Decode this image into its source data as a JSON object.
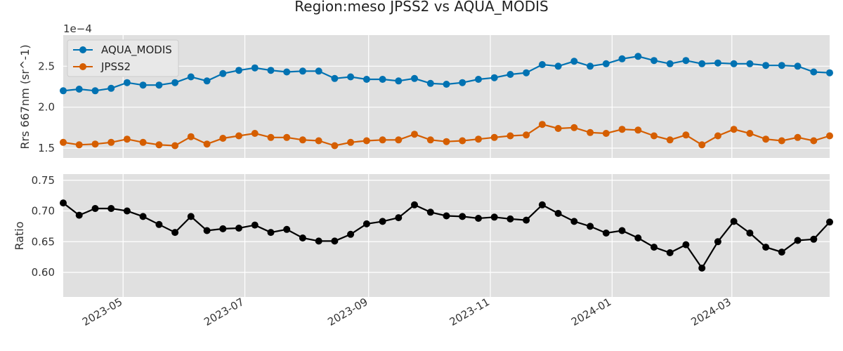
{
  "chart_data": {
    "type": "line",
    "title": "Region:meso JPSS2 vs AQUA_MODIS",
    "colors": {
      "panel_bg": "#e0e0e0",
      "grid": "#ffffff",
      "aqua": "#0072b2",
      "jpss2": "#d55e00",
      "ratio": "#000000"
    },
    "x_dates": [
      "2023-04-01",
      "2023-04-09",
      "2023-04-17",
      "2023-04-25",
      "2023-05-03",
      "2023-05-11",
      "2023-05-19",
      "2023-05-27",
      "2023-06-04",
      "2023-06-12",
      "2023-06-20",
      "2023-06-28",
      "2023-07-06",
      "2023-07-14",
      "2023-07-22",
      "2023-07-30",
      "2023-08-07",
      "2023-08-15",
      "2023-08-23",
      "2023-08-31",
      "2023-09-08",
      "2023-09-16",
      "2023-09-24",
      "2023-10-02",
      "2023-10-10",
      "2023-10-18",
      "2023-10-26",
      "2023-11-03",
      "2023-11-11",
      "2023-11-19",
      "2023-11-27",
      "2023-12-05",
      "2023-12-13",
      "2023-12-21",
      "2023-12-29",
      "2024-01-06",
      "2024-01-14",
      "2024-01-22",
      "2024-01-30",
      "2024-02-07",
      "2024-02-15",
      "2024-02-23",
      "2024-03-02",
      "2024-03-10",
      "2024-03-18",
      "2024-03-26",
      "2024-04-03",
      "2024-04-11",
      "2024-04-19"
    ],
    "xlim": [
      "2023-04-01",
      "2024-04-19"
    ],
    "xticks": [
      "2023-05",
      "2023-07",
      "2023-09",
      "2023-11",
      "2024-01",
      "2024-03"
    ],
    "top": {
      "ylabel": "Rrs 667nm (sr^-1)",
      "offset_text": "1e−4",
      "ylim": [
        1.38,
        2.88
      ],
      "yticks": [
        "1.5",
        "2.0",
        "2.5"
      ],
      "legend_position": "upper-left",
      "series": [
        {
          "name": "AQUA_MODIS",
          "color": "#0072b2",
          "values": [
            2.2,
            2.22,
            2.2,
            2.23,
            2.3,
            2.27,
            2.27,
            2.3,
            2.37,
            2.32,
            2.41,
            2.45,
            2.48,
            2.45,
            2.43,
            2.44,
            2.44,
            2.35,
            2.37,
            2.34,
            2.34,
            2.32,
            2.35,
            2.29,
            2.28,
            2.3,
            2.34,
            2.36,
            2.4,
            2.42,
            2.52,
            2.5,
            2.56,
            2.5,
            2.53,
            2.59,
            2.62,
            2.57,
            2.53,
            2.57,
            2.53,
            2.54,
            2.53,
            2.53,
            2.51,
            2.51,
            2.5,
            2.43,
            2.42
          ]
        },
        {
          "name": "JPSS2",
          "color": "#d55e00",
          "values": [
            1.57,
            1.54,
            1.55,
            1.57,
            1.61,
            1.57,
            1.54,
            1.53,
            1.64,
            1.55,
            1.62,
            1.65,
            1.68,
            1.63,
            1.63,
            1.6,
            1.59,
            1.53,
            1.57,
            1.59,
            1.6,
            1.6,
            1.67,
            1.6,
            1.58,
            1.59,
            1.61,
            1.63,
            1.65,
            1.66,
            1.79,
            1.74,
            1.75,
            1.69,
            1.68,
            1.73,
            1.72,
            1.65,
            1.6,
            1.66,
            1.54,
            1.65,
            1.73,
            1.68,
            1.61,
            1.59,
            1.63,
            1.59,
            1.65
          ]
        }
      ]
    },
    "bottom": {
      "ylabel": "Ratio",
      "ylim": [
        0.56,
        0.76
      ],
      "yticks": [
        "0.60",
        "0.65",
        "0.70",
        "0.75"
      ],
      "series": [
        {
          "name": "Ratio",
          "color": "#000000",
          "values": [
            0.713,
            0.693,
            0.704,
            0.704,
            0.7,
            0.691,
            0.678,
            0.665,
            0.691,
            0.668,
            0.671,
            0.672,
            0.677,
            0.665,
            0.67,
            0.656,
            0.651,
            0.651,
            0.662,
            0.679,
            0.683,
            0.689,
            0.71,
            0.698,
            0.692,
            0.691,
            0.688,
            0.69,
            0.687,
            0.685,
            0.71,
            0.696,
            0.683,
            0.675,
            0.664,
            0.668,
            0.656,
            0.641,
            0.632,
            0.645,
            0.607,
            0.65,
            0.683,
            0.664,
            0.641,
            0.633,
            0.652,
            0.654,
            0.682
          ]
        }
      ]
    }
  }
}
